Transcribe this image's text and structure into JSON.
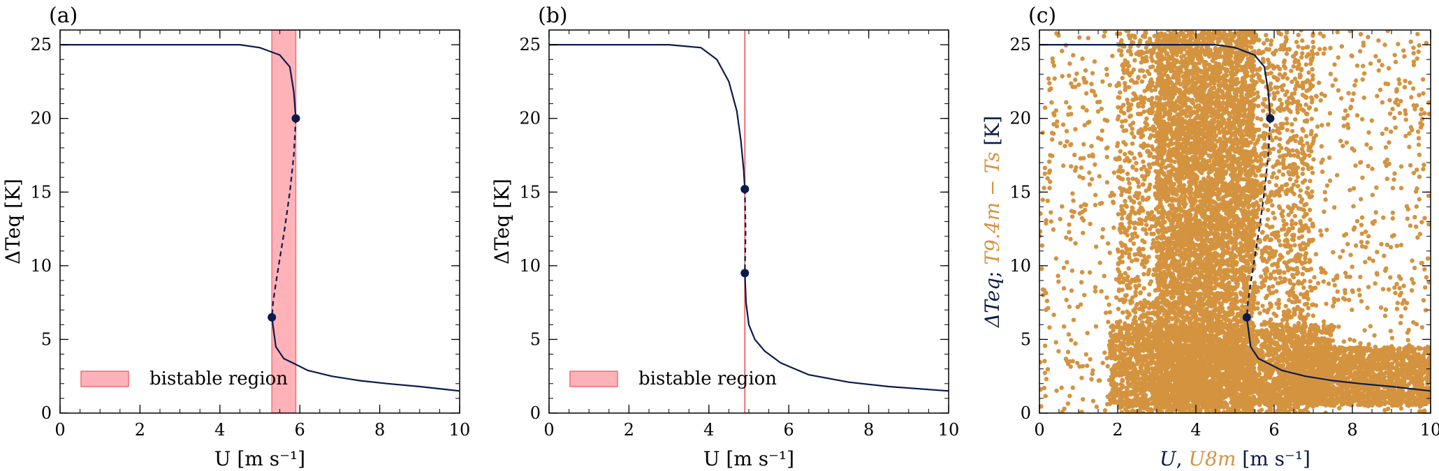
{
  "colors": {
    "curve": "#0a1a4a",
    "scatter": "#d4933f",
    "bistable_fill": "#ffb3b8",
    "bistable_edge": "#f26b74",
    "axis": "#000000"
  },
  "chart_data": [
    {
      "type": "line",
      "panel_label": "(a)",
      "xlabel": "U [m s⁻¹]",
      "ylabel": "ΔTeq [K]",
      "xlim": [
        0,
        10
      ],
      "ylim": [
        0,
        26
      ],
      "xticks": [
        0,
        2,
        4,
        6,
        8,
        10
      ],
      "yticks": [
        0,
        5,
        10,
        15,
        20,
        25
      ],
      "grid": false,
      "legend": {
        "position": "bottom-left",
        "entries": [
          "bistable region"
        ]
      },
      "bistable_region": [
        5.3,
        5.9
      ],
      "series": [
        {
          "style": "solid",
          "x": [
            0,
            1,
            2,
            3,
            4,
            4.5,
            5.0,
            5.5,
            5.75,
            5.85,
            5.9
          ],
          "y": [
            25,
            25,
            25,
            25,
            25,
            25,
            24.8,
            24.3,
            23.5,
            21.8,
            20
          ]
        },
        {
          "style": "dashed",
          "x": [
            5.9,
            5.85,
            5.75,
            5.62,
            5.5,
            5.4,
            5.33,
            5.3
          ],
          "y": [
            20,
            17.5,
            15,
            12.5,
            10.5,
            8.8,
            7.5,
            6.5
          ]
        },
        {
          "style": "solid",
          "x": [
            5.3,
            5.4,
            5.6,
            5.9,
            6.2,
            6.8,
            7.5,
            8.2,
            9.0,
            10
          ],
          "y": [
            6.5,
            4.5,
            3.7,
            3.3,
            2.9,
            2.5,
            2.2,
            2.0,
            1.8,
            1.5
          ]
        }
      ],
      "markers": [
        {
          "x": 5.9,
          "y": 20
        },
        {
          "x": 5.3,
          "y": 6.5
        }
      ]
    },
    {
      "type": "line",
      "panel_label": "(b)",
      "xlabel": "U [m s⁻¹]",
      "ylabel": "ΔTeq [K]",
      "xlim": [
        0,
        10
      ],
      "ylim": [
        0,
        26
      ],
      "xticks": [
        0,
        2,
        4,
        6,
        8,
        10
      ],
      "yticks": [
        0,
        5,
        10,
        15,
        20,
        25
      ],
      "grid": false,
      "legend": {
        "position": "bottom-left",
        "entries": [
          "bistable region"
        ]
      },
      "bistable_line": 4.9,
      "series": [
        {
          "style": "solid",
          "x": [
            0,
            1,
            2,
            3,
            3.8,
            4.2,
            4.5,
            4.7,
            4.8,
            4.87,
            4.9
          ],
          "y": [
            25,
            25,
            25,
            25,
            24.8,
            24.0,
            22.5,
            20.5,
            18.5,
            16.5,
            15.2
          ]
        },
        {
          "style": "dashed",
          "x": [
            4.9,
            4.92,
            4.9
          ],
          "y": [
            15.2,
            12.3,
            9.5
          ]
        },
        {
          "style": "solid",
          "x": [
            4.9,
            4.93,
            5.0,
            5.15,
            5.4,
            5.8,
            6.5,
            7.5,
            8.5,
            10
          ],
          "y": [
            9.5,
            7.5,
            6.0,
            5.0,
            4.2,
            3.4,
            2.6,
            2.1,
            1.8,
            1.5
          ]
        }
      ],
      "markers": [
        {
          "x": 4.9,
          "y": 15.2
        },
        {
          "x": 4.9,
          "y": 9.5
        }
      ]
    },
    {
      "type": "scatter",
      "panel_label": "(c)",
      "xlabel_parts": [
        "U",
        ", ",
        "U8m",
        " [m s⁻¹]"
      ],
      "ylabel_parts": [
        "ΔTeq",
        "; ",
        "T9.4m − Ts",
        " [K]"
      ],
      "xlim": [
        0,
        10
      ],
      "ylim": [
        0,
        26
      ],
      "xticks": [
        0,
        2,
        4,
        6,
        8,
        10
      ],
      "yticks": [
        0,
        5,
        10,
        15,
        20,
        25
      ],
      "grid": false,
      "series": [
        {
          "style": "solid",
          "x": [
            0,
            1,
            2,
            3,
            4,
            4.5,
            5.0,
            5.5,
            5.75,
            5.85,
            5.9
          ],
          "y": [
            25,
            25,
            25,
            25,
            25,
            25,
            24.8,
            24.3,
            23.5,
            21.8,
            20
          ]
        },
        {
          "style": "dashed",
          "x": [
            5.9,
            5.85,
            5.75,
            5.62,
            5.5,
            5.4,
            5.33,
            5.3
          ],
          "y": [
            20,
            17.5,
            15,
            12.5,
            10.5,
            8.8,
            7.5,
            6.5
          ]
        },
        {
          "style": "solid",
          "x": [
            5.3,
            5.4,
            5.6,
            5.9,
            6.2,
            6.8,
            7.5,
            8.2,
            9.0,
            10
          ],
          "y": [
            6.5,
            4.5,
            3.7,
            3.3,
            2.9,
            2.5,
            2.2,
            2.0,
            1.8,
            1.5
          ]
        }
      ],
      "markers": [
        {
          "x": 5.9,
          "y": 20
        },
        {
          "x": 5.3,
          "y": 6.5
        }
      ],
      "scatter_regions": [
        {
          "x": [
            0,
            10
          ],
          "y": [
            0,
            26
          ],
          "n": 1400,
          "note": "sparse background"
        },
        {
          "x": [
            2.0,
            7.0
          ],
          "y": [
            0,
            26
          ],
          "n": 3000,
          "note": "broad cloud"
        },
        {
          "x": [
            3.0,
            5.5
          ],
          "y": [
            0,
            26
          ],
          "n": 4200,
          "note": "dense core"
        },
        {
          "x": [
            1.8,
            7.5
          ],
          "y": [
            0.5,
            6
          ],
          "n": 2200,
          "note": "low ΔT band"
        },
        {
          "x": [
            6.5,
            10
          ],
          "y": [
            0.5,
            4.5
          ],
          "n": 1600,
          "note": "high-wind tail"
        }
      ]
    }
  ]
}
